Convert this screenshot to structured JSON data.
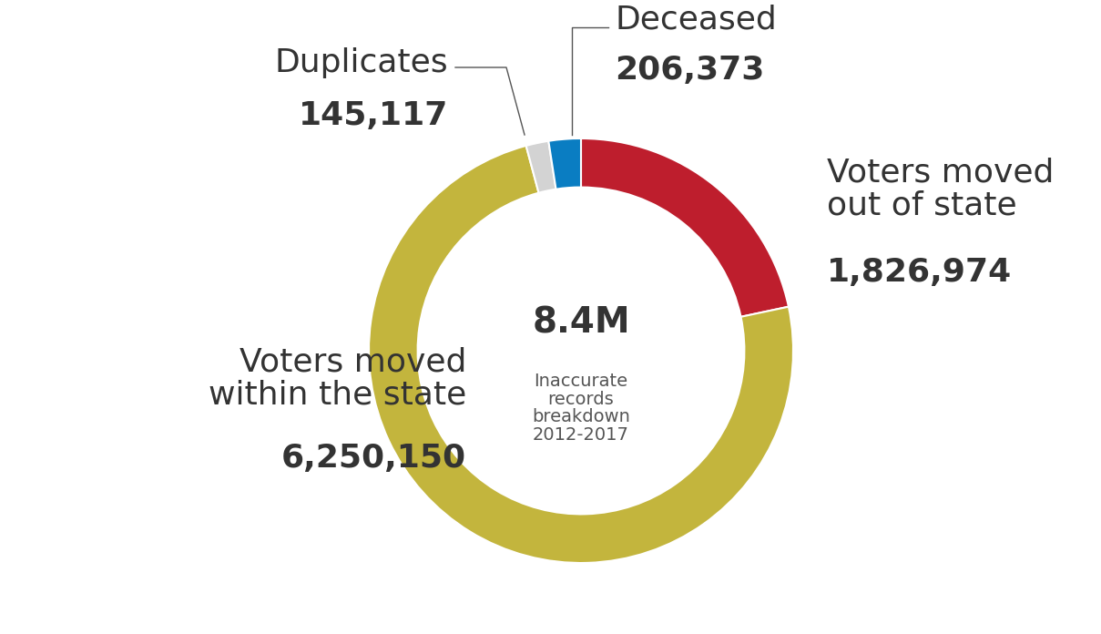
{
  "chart_data": {
    "type": "pie",
    "categories": [
      "Voters moved\nout of state",
      "Voters moved\nwithin the state",
      "Duplicates",
      "Deceased"
    ],
    "values": [
      1826974,
      6250150,
      145117,
      206373
    ],
    "value_labels": [
      "1,826,974",
      "6,250,150",
      "145,117",
      "206,373"
    ],
    "colors": [
      "#be1e2d",
      "#c3b53d",
      "#d3d3d3",
      "#0a7dc2"
    ],
    "data_labels": true,
    "annotations": [
      "8.4M",
      "Inaccurate\nrecords\nbreakdown\n2012-2017"
    ]
  }
}
